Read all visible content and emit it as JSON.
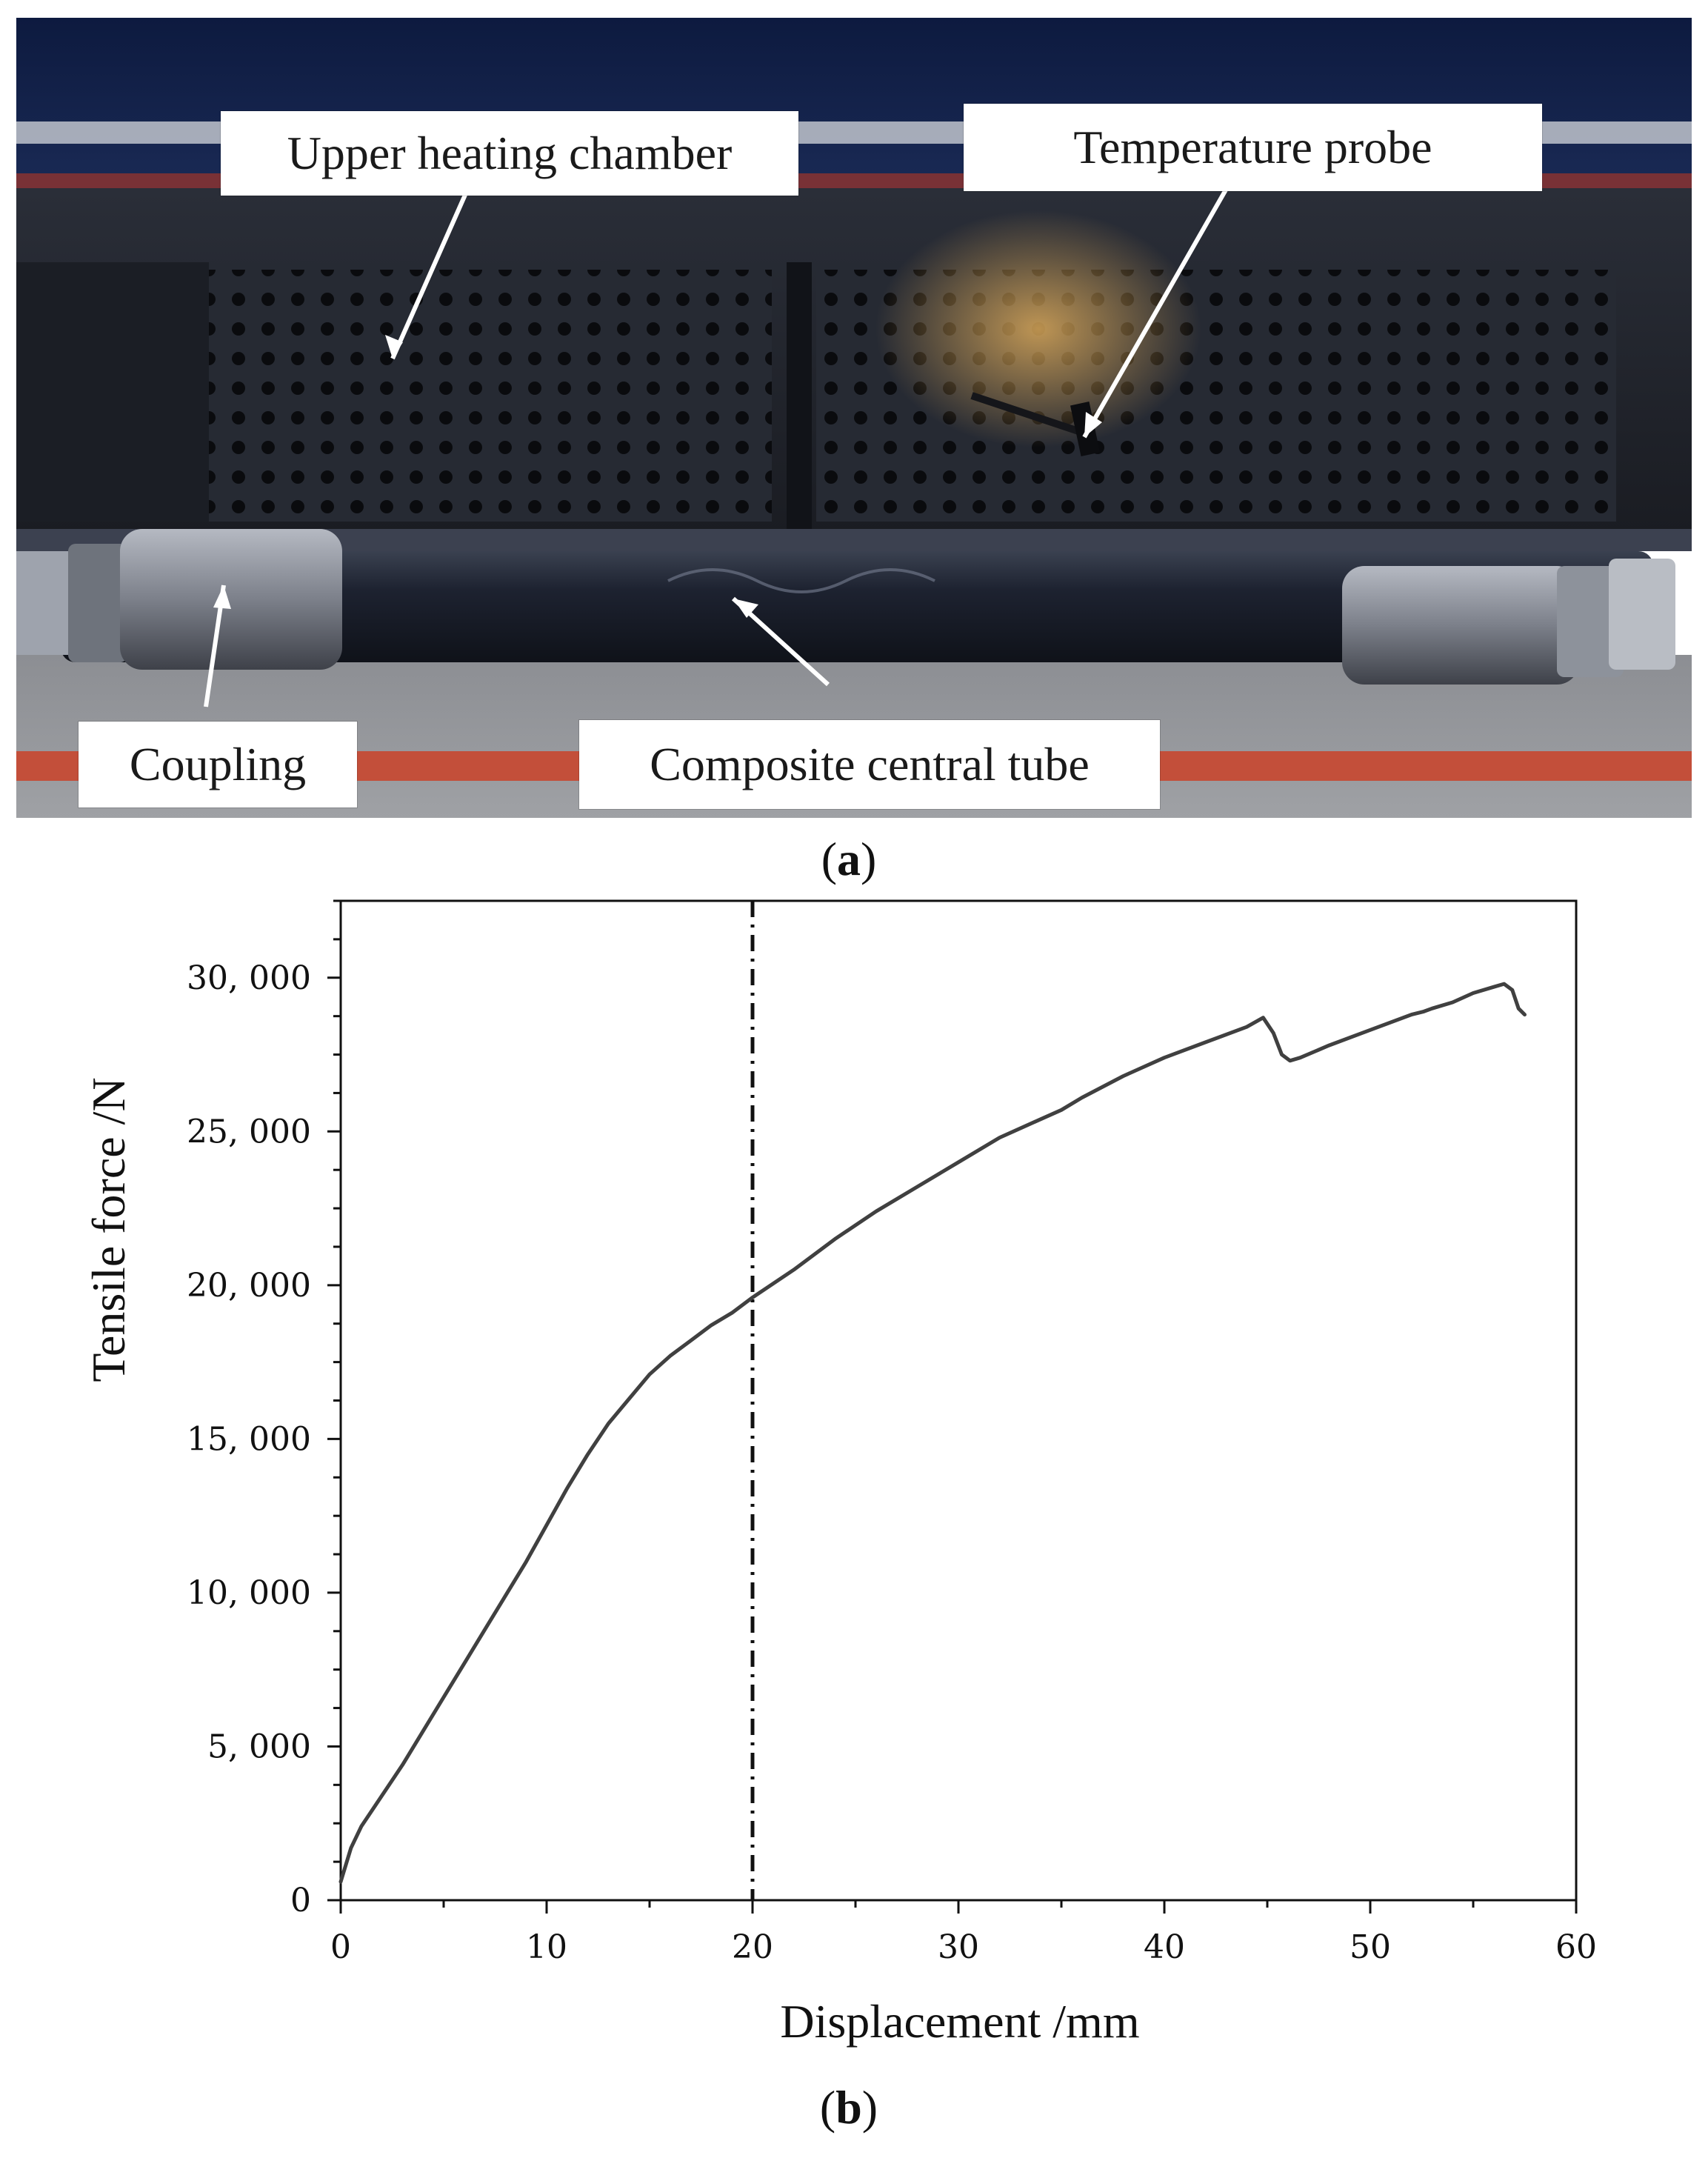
{
  "figure": {
    "panel_a": {
      "label_letter": "a",
      "callouts": {
        "upper_heating_chamber": "Upper heating chamber",
        "temperature_probe": "Temperature probe",
        "coupling": "Coupling",
        "composite_central_tube": "Composite central tube"
      }
    },
    "panel_b": {
      "label_letter": "b"
    }
  },
  "chart_data": {
    "type": "line",
    "xlabel": "Displacement /mm",
    "ylabel": "Tensile force /N",
    "xlim": [
      0,
      60
    ],
    "ylim": [
      0,
      32500
    ],
    "x_ticks": [
      "0",
      "10",
      "20",
      "30",
      "40",
      "50",
      "60"
    ],
    "y_ticks": [
      "0",
      "5, 000",
      "10, 000",
      "15, 000",
      "20, 000",
      "25, 000",
      "30, 000"
    ],
    "x_tick_values": [
      0,
      10,
      20,
      30,
      40,
      50,
      60
    ],
    "y_tick_values": [
      0,
      5000,
      10000,
      15000,
      20000,
      25000,
      30000
    ],
    "reference_line": {
      "x": 20,
      "style": "dash-dot"
    },
    "series": [
      {
        "color": "#404040",
        "x": [
          0,
          0.5,
          1,
          2,
          3,
          4,
          5,
          6,
          7,
          8,
          9,
          10,
          11,
          12,
          13,
          14,
          15,
          16,
          17,
          18,
          19,
          20,
          22,
          24,
          26,
          28,
          30,
          32,
          34,
          35,
          36,
          38,
          40,
          42,
          44,
          44.8,
          45.3,
          45.7,
          46.1,
          46.6,
          48,
          50,
          52,
          52.6,
          53,
          54,
          55,
          56,
          56.5,
          56.9,
          57.2,
          57.5
        ],
        "y": [
          600,
          1700,
          2400,
          3400,
          4400,
          5500,
          6600,
          7700,
          8800,
          9900,
          11000,
          12200,
          13400,
          14500,
          15500,
          16300,
          17100,
          17700,
          18200,
          18700,
          19100,
          19600,
          20500,
          21500,
          22400,
          23200,
          24000,
          24800,
          25400,
          25700,
          26100,
          26800,
          27400,
          27900,
          28400,
          28700,
          28200,
          27500,
          27300,
          27400,
          27800,
          28300,
          28800,
          28900,
          29000,
          29200,
          29500,
          29700,
          29800,
          29600,
          29000,
          28800
        ]
      }
    ]
  }
}
